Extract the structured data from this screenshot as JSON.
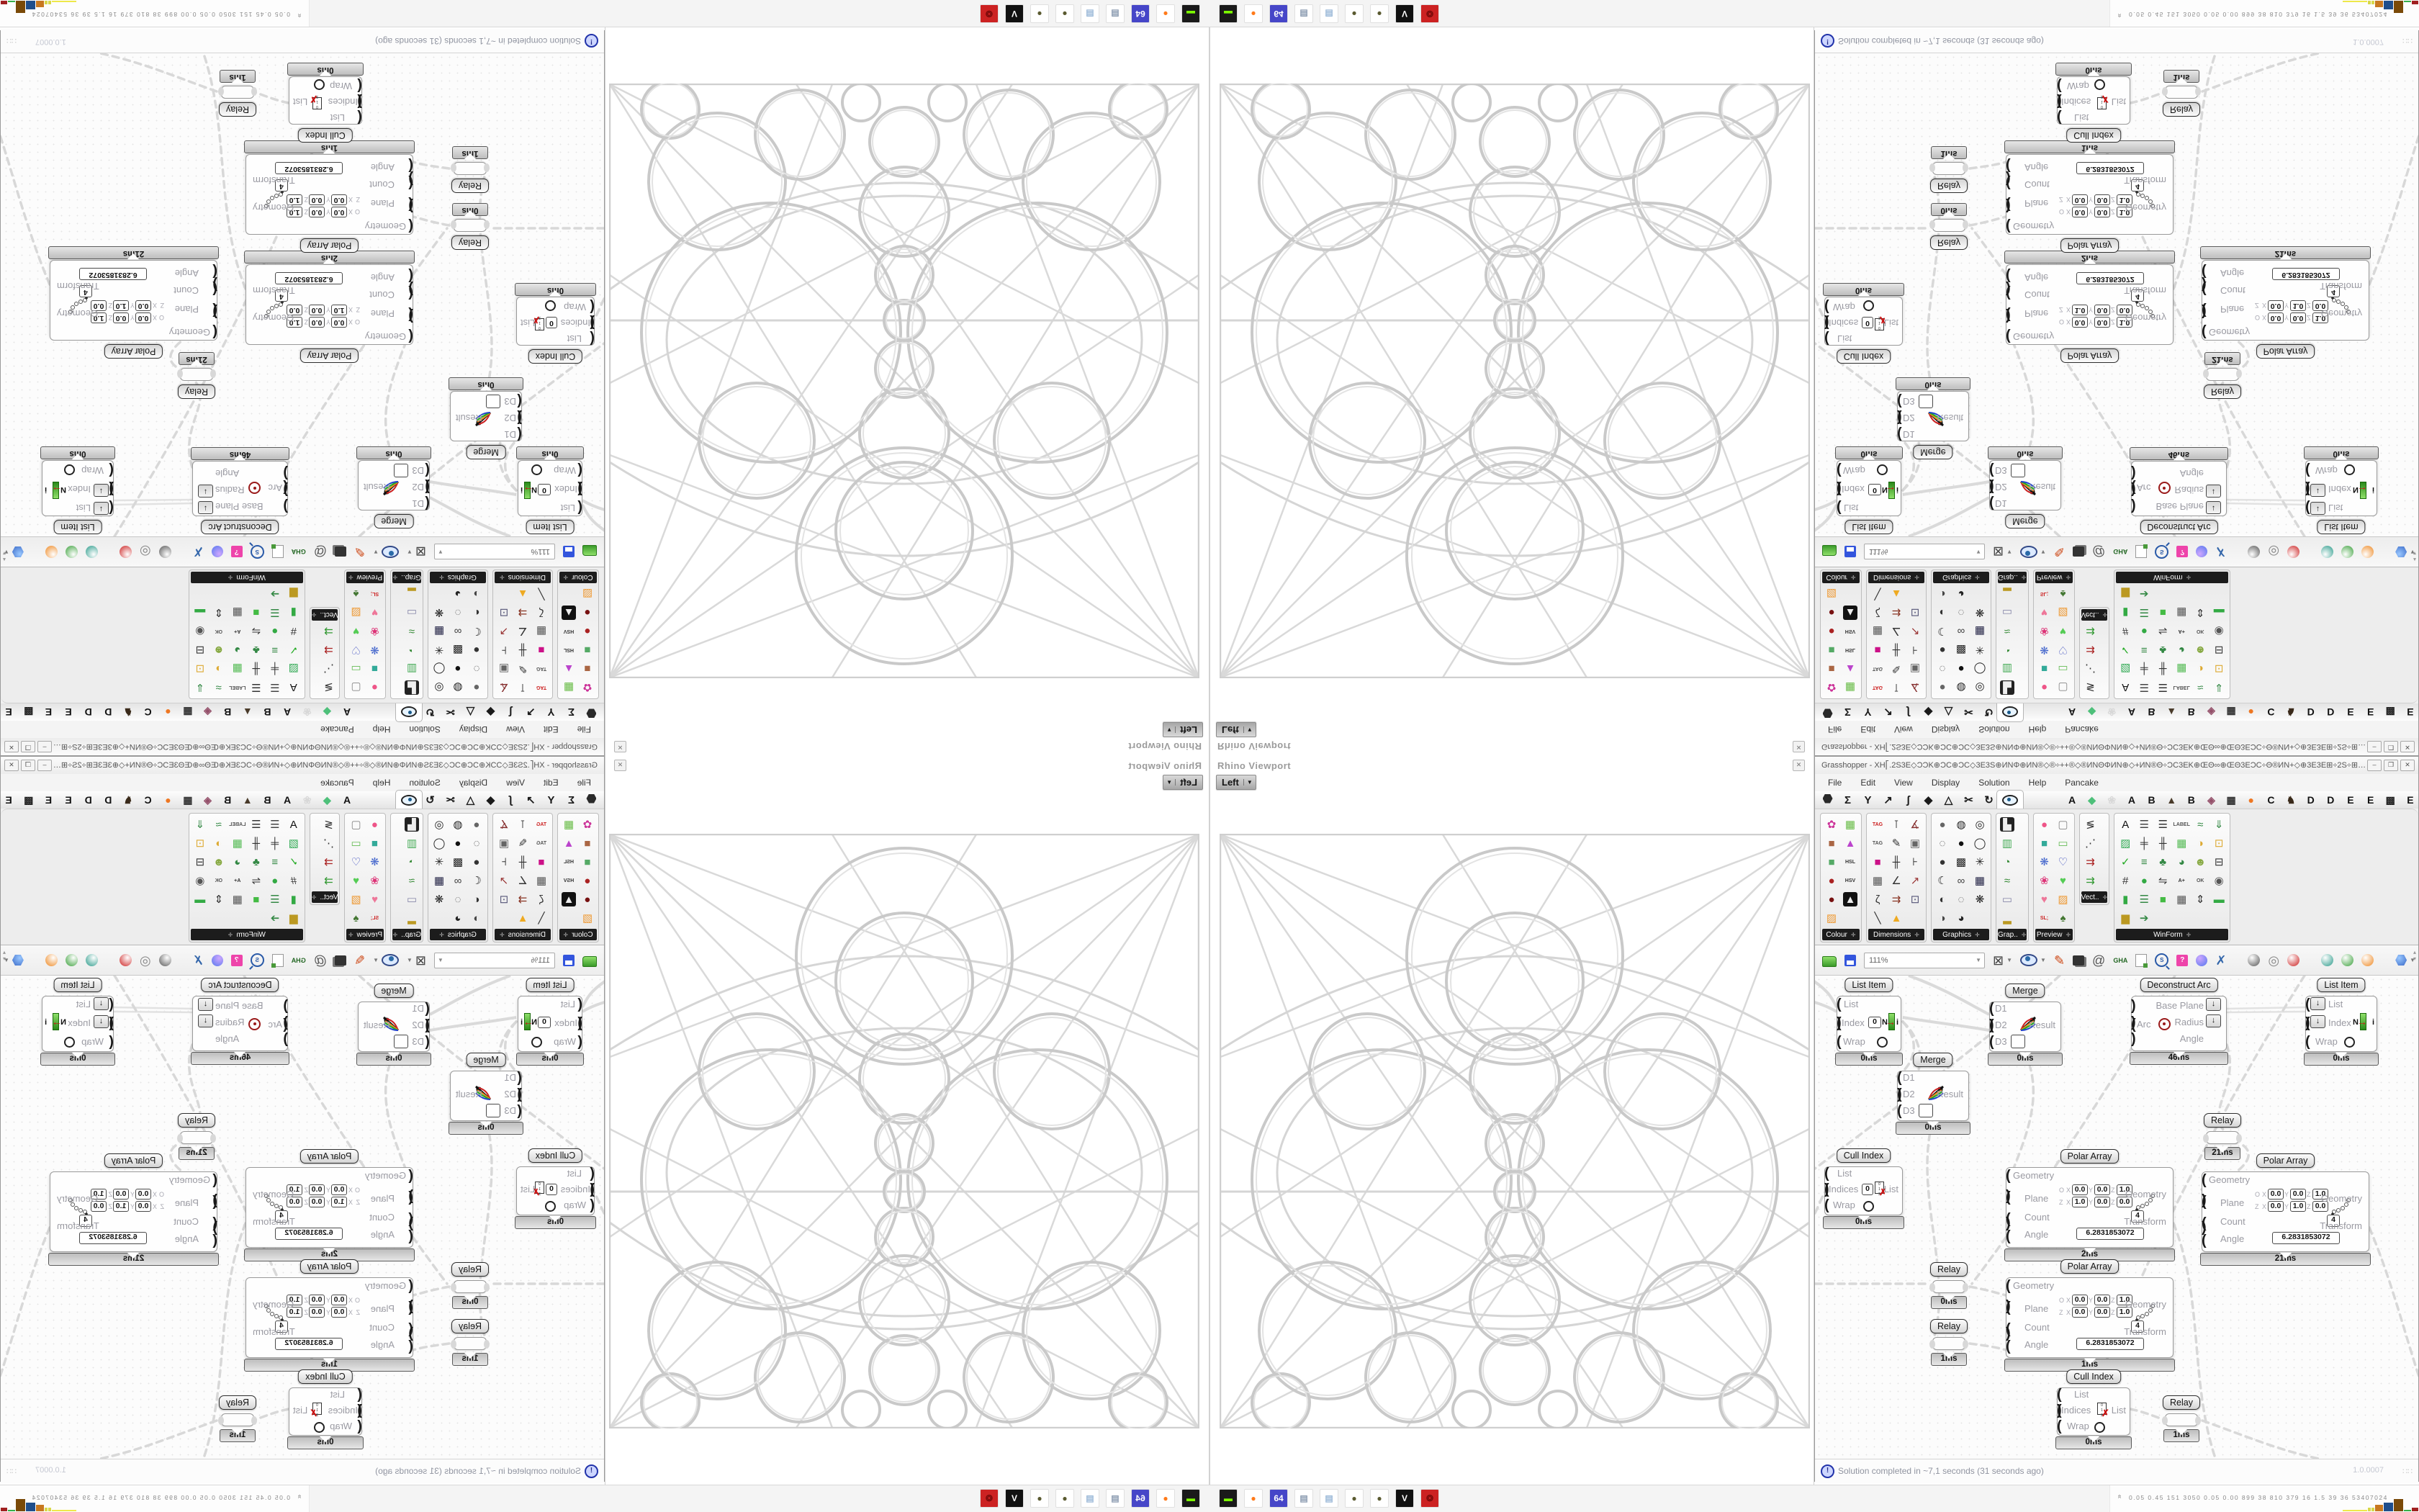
{
  "viewport": {
    "title": "Rhino Viewport",
    "view": "Left",
    "dropdown_arrow": "▼",
    "close": "✕"
  },
  "window": {
    "title": "Grasshopper - XH⎡.2S3E◇ƆƆK⊕ƆC⊕ƆC◇3E3S⊕ИΝΦ⊕ИΝ®◇®÷++®◇®ИΝΘΦИΝ⊕◇+ИΝ®Θ÷ƆC3EK⊕ŒΘ∞⊕ŒΘ3EƆC÷Θ®ИΝ+◇⊕3E3E⊞÷2S÷⊞3E3E⊕◇+ĸŒ3E⊞+÷ƆC...",
    "minimize": "–",
    "maximize": "❐",
    "close": "✕"
  },
  "menus": [
    "File",
    "Edit",
    "View",
    "Display",
    "Solution",
    "Help",
    "Pancake"
  ],
  "tabs": {
    "categories": [
      {
        "n": "tab-params",
        "t": "hex"
      },
      {
        "n": "tab-maths",
        "g": "Σ"
      },
      {
        "n": "tab-sets",
        "g": "Y"
      },
      {
        "n": "tab-vector",
        "g": "↗"
      },
      {
        "n": "tab-curve",
        "g": "ʃ"
      },
      {
        "n": "tab-surface",
        "g": "◆"
      },
      {
        "n": "tab-mesh",
        "g": "△"
      },
      {
        "n": "tab-intersect",
        "g": "✂"
      },
      {
        "n": "tab-transform",
        "g": "↻"
      },
      {
        "n": "tab-display",
        "t": "eye",
        "selected": true
      }
    ],
    "plugins": [
      [
        "tab-a",
        "A",
        "#111111"
      ],
      [
        "tab-gem",
        "◆",
        "#4ec07a"
      ],
      [
        "tab-blob",
        "❀",
        "#d8d8d8"
      ],
      [
        "tab-a2",
        "A",
        "#111111"
      ],
      [
        "tab-b",
        "B",
        "#111111"
      ],
      [
        "tab-mountain",
        "▲",
        "#4a3b2a"
      ],
      [
        "tab-b2",
        "B",
        "#111111"
      ],
      [
        "tab-shield",
        "◈",
        "#94506a"
      ],
      [
        "tab-waffle",
        "▦",
        "#333333"
      ],
      [
        "tab-orange",
        "●",
        "#ee7722"
      ],
      [
        "tab-c",
        "C",
        "#111111"
      ],
      [
        "tab-bird",
        "♞",
        "#3a2a1a"
      ],
      [
        "tab-d",
        "D",
        "#111111"
      ],
      [
        "tab-d2",
        "D",
        "#111111"
      ],
      [
        "tab-e",
        "E",
        "#111111"
      ],
      [
        "tab-e2",
        "E",
        "#111111"
      ],
      [
        "tab-dots",
        "▩",
        "#222222"
      ],
      [
        "tab-e3",
        "E",
        "#111111"
      ]
    ]
  },
  "panels": [
    {
      "name": "colour",
      "label": "Colour",
      "cols": 2,
      "icons": [
        [
          "colour-wheel",
          "✿",
          "#cc3399"
        ],
        [
          "gradient",
          "▦",
          "#66bb44"
        ],
        [
          "cube-red",
          "■",
          "#aa6644"
        ],
        [
          "triangle",
          "▲",
          "#bb44cc"
        ],
        [
          "cube-green",
          "■",
          "#55aa66"
        ],
        [
          "hsl",
          "HSL",
          "#333333"
        ],
        [
          "sphere-red",
          "●",
          "#aa2222"
        ],
        [
          "hsv",
          "HSV",
          "#333333"
        ],
        [
          "sphere-dark",
          "●",
          "#771111"
        ],
        [
          "prism",
          "▲",
          "#eeeeee",
          "#111111"
        ],
        [
          "gradient-2",
          "▨",
          "#ee9933"
        ]
      ]
    },
    {
      "name": "dimensions",
      "label": "Dimensions",
      "cols": 3,
      "icons": [
        [
          "tag-x",
          "TAG",
          "#cc2222"
        ],
        [
          "ruler",
          "⊺",
          "#333333"
        ],
        [
          "angle-arc",
          "∡",
          "#883333"
        ],
        [
          "tag-pen",
          "TAG",
          "#555555"
        ],
        [
          "pen",
          "✎",
          "#333333"
        ],
        [
          "box-dim",
          "▣",
          "#666666"
        ],
        [
          "rect-magenta",
          "■",
          "#cc1188"
        ],
        [
          "ticks",
          "╫",
          "#333333"
        ],
        [
          "linear-dim",
          "⊦",
          "#333333"
        ],
        [
          "hatch",
          "▦",
          "#555555"
        ],
        [
          "angle-dim",
          "∠",
          "#333333"
        ],
        [
          "arrow-dim",
          "↗",
          "#993333"
        ],
        [
          "poly-dim",
          "ζ",
          "#333333"
        ],
        [
          "marker",
          "⇉",
          "#883322"
        ],
        [
          "select-box",
          "⊡",
          "#555577"
        ],
        [
          "diag-line",
          "╲",
          "#333333"
        ],
        [
          "triangle-y",
          "▲",
          "#eeaa22"
        ]
      ]
    },
    {
      "name": "graphics",
      "label": "Graphics",
      "cols": 3,
      "icons": [
        [
          "circle-gray",
          "●",
          "#666666"
        ],
        [
          "t-circle",
          "◍",
          "#222222"
        ],
        [
          "target",
          "◎",
          "#222222"
        ],
        [
          "dashed-circle",
          "◌",
          "#444444"
        ],
        [
          "t-solid",
          "●",
          "#111111"
        ],
        [
          "o-frame",
          "◯",
          "#222222"
        ],
        [
          "dot-soft",
          "●",
          "#333333"
        ],
        [
          "b-grid",
          "▩",
          "#222222"
        ],
        [
          "wheel",
          "✳",
          "#222222"
        ],
        [
          "crescent",
          "☾",
          "#222222"
        ],
        [
          "link",
          "∞",
          "#444444"
        ],
        [
          "save-h",
          "▦",
          "#222244"
        ],
        [
          "sphere-g",
          "◐",
          "#333333"
        ],
        [
          "ellipse-dash",
          "◌",
          "#555555"
        ],
        [
          "save-snow",
          "❋",
          "#222222"
        ],
        [
          "sphere-g2",
          "◑",
          "#444444"
        ],
        [
          "pacman",
          "◕",
          "#222222"
        ]
      ]
    },
    {
      "name": "graph",
      "label": "Grap..",
      "cols": 1,
      "icons": [
        [
          "city-chart",
          "▙",
          "#eeeeee",
          "#222222"
        ],
        [
          "gradient-bar",
          "▥",
          "#44aa55"
        ],
        [
          "pie",
          "◔",
          "#338833"
        ],
        [
          "line-chart",
          "≈",
          "#338833"
        ],
        [
          "photo",
          "▭",
          "#8888aa"
        ],
        [
          "bar-chart",
          "▂",
          "#bb9922"
        ]
      ]
    },
    {
      "name": "preview",
      "label": "Preview",
      "cols": 2,
      "icons": [
        [
          "sphere-pink",
          "●",
          "#ee5588"
        ],
        [
          "camera",
          "▢",
          "#888888"
        ],
        [
          "box-teal",
          "■",
          "#33aa99"
        ],
        [
          "landscape",
          "▭",
          "#66bb55"
        ],
        [
          "balls-blue",
          "❋",
          "#4466cc"
        ],
        [
          "heart-mesh",
          "♡",
          "#3344bb"
        ],
        [
          "balls-pink",
          "❀",
          "#dd3377"
        ],
        [
          "heart-green",
          "♥",
          "#55cc55"
        ],
        [
          "hearts",
          "♥",
          "#ee7799"
        ],
        [
          "gradient-x",
          "▨",
          "#ee9933"
        ],
        [
          "sl-text",
          "SL;",
          "#cc2222"
        ],
        [
          "tree",
          "♠",
          "#447733"
        ]
      ]
    },
    {
      "name": "vector",
      "label": "Vect..",
      "cols": 1,
      "short": true,
      "icons": [
        [
          "sort",
          "≶",
          "#333333"
        ],
        [
          "path",
          "⋰",
          "#333333"
        ],
        [
          "arrows-red",
          "⇉",
          "#aa2222"
        ],
        [
          "arrows-green",
          "⇉",
          "#339933"
        ]
      ]
    },
    {
      "name": "winform",
      "label": "WinForm",
      "cols": 6,
      "icons": [
        [
          "text-a",
          "A",
          "#111111"
        ],
        [
          "tree-list",
          "☰",
          "#444444"
        ],
        [
          "lines",
          "☰",
          "#333333"
        ],
        [
          "label",
          "LABEL",
          "#555555"
        ],
        [
          "chart-w",
          "≈",
          "#338844"
        ],
        [
          "import",
          "⇓",
          "#338844"
        ],
        [
          "hatch-g",
          "▨",
          "#33aa55"
        ],
        [
          "slider-1",
          "╪",
          "#333333"
        ],
        [
          "slider-2",
          "╫",
          "#333333"
        ],
        [
          "grid-g",
          "▦",
          "#55bb55"
        ],
        [
          "toggle",
          "◑",
          "#ddaa33"
        ],
        [
          "crop",
          "⊡",
          "#ddaa33"
        ],
        [
          "check",
          "✓",
          "#22aa22"
        ],
        [
          "list-g",
          "≡",
          "#338844"
        ],
        [
          "trees",
          "♣",
          "#338844"
        ],
        [
          "pie-g",
          "◕",
          "#338844"
        ],
        [
          "person",
          "☻",
          "#88aa44"
        ],
        [
          "dropdown",
          "⊟",
          "#333333"
        ],
        [
          "counter",
          "#",
          "#333333"
        ],
        [
          "ball-g",
          "●",
          "#33aa44"
        ],
        [
          "compare",
          "⇋",
          "#333333"
        ],
        [
          "a-plus",
          "A+",
          "#333333"
        ],
        [
          "ok",
          "OK",
          "#555555"
        ],
        [
          "switch",
          "◉",
          "#555555"
        ],
        [
          "bar-g",
          "▮",
          "#33aa44"
        ],
        [
          "list-g2",
          "☰",
          "#338844"
        ],
        [
          "panel-g",
          "■",
          "#44bb44"
        ],
        [
          "calc",
          "▦",
          "#555555"
        ],
        [
          "scroll-v",
          "⇕",
          "#333333"
        ],
        [
          "progress",
          "▬",
          "#33aa44"
        ],
        [
          "bars",
          "▆",
          "#bb9922"
        ],
        [
          "step",
          "➔",
          "#338844"
        ]
      ]
    }
  ],
  "toolbar": {
    "zoom": "111%",
    "items": [
      {
        "n": "open-file-icon",
        "t": "folder"
      },
      {
        "n": "save-file-icon",
        "t": "floppy"
      },
      {
        "n": "zoom-combo",
        "t": "combo"
      },
      {
        "n": "zoom-extents-icon",
        "t": "g",
        "g": "⊠",
        "c": "#444444"
      },
      {
        "n": "zoom-dd",
        "t": "dd"
      },
      {
        "n": "preview-eye-icon",
        "t": "eye"
      },
      {
        "n": "eye-dd",
        "t": "dd"
      },
      {
        "n": "sketch-pen-icon",
        "t": "g",
        "g": "✎",
        "c": "#cc4411"
      },
      {
        "n": "views-icon",
        "t": "views"
      },
      {
        "n": "at-icon",
        "t": "g",
        "g": "@",
        "c": "#555555"
      },
      {
        "n": "gha-icon",
        "t": "gha",
        "g": "GHA"
      },
      {
        "n": "notepad-icon",
        "t": "note"
      },
      {
        "n": "finder-icon",
        "t": "mag",
        "g": "S"
      },
      {
        "n": "package-icon",
        "t": "gift",
        "g": "?"
      },
      {
        "n": "bulb-icon",
        "t": "bulb"
      },
      {
        "n": "ribbons-icon",
        "t": "g",
        "g": "✗",
        "c": "#3366aa"
      },
      {
        "n": "sp1",
        "t": "sep"
      },
      {
        "n": "sphere-dark-icon",
        "t": "ball",
        "c": "#555555"
      },
      {
        "n": "torus-icon",
        "t": "g",
        "g": "◎",
        "c": "#888888"
      },
      {
        "n": "gem-red-icon",
        "t": "ball",
        "c": "#cc2222"
      },
      {
        "n": "sp2",
        "t": "sep"
      },
      {
        "n": "sphere-teal-icon",
        "t": "ball",
        "c": "#2a9a8a"
      },
      {
        "n": "sphere-green-icon",
        "t": "ball",
        "c": "#3aa03a"
      },
      {
        "n": "sphere-orange-icon",
        "t": "ball",
        "c": "#ee8822"
      },
      {
        "n": "sp3",
        "t": "sep"
      },
      {
        "n": "hexagon-blue-icon",
        "t": "hex"
      },
      {
        "n": "hex-dd",
        "t": "dd"
      }
    ]
  },
  "canvas": {
    "plane_labels": {
      "o": "O",
      "z": "Z",
      "x": "X",
      "y": "Y"
    },
    "nodes": {
      "list_item_1": {
        "title": "List Item",
        "in_list": "List",
        "in_index": "Index",
        "in_wrap": "Wrap",
        "index_value": "0",
        "n_label": "N",
        "out_label": "i",
        "time": "0ms"
      },
      "merge_1": {
        "title": "Merge",
        "d1": "D1",
        "d2": "D2",
        "d3": "D3",
        "result": "Result",
        "time": "0ms"
      },
      "deconstruct_arc": {
        "title": "Deconstruct Arc",
        "in_arc": "Arc",
        "out_base": "Base Plane",
        "out_radius": "Radius",
        "out_angle": "Angle",
        "arrow": "↓",
        "time": "46ms"
      },
      "list_item_2": {
        "title": "List Item",
        "in_list": "List",
        "in_index": "Index",
        "in_wrap": "Wrap",
        "n_label": "N",
        "out_label": "i",
        "arrow": "↓",
        "time": "0ms"
      },
      "merge_2": {
        "title": "Merge",
        "d1": "D1",
        "d2": "D2",
        "d3": "D3",
        "result": "Result",
        "time": "0ms"
      },
      "relay_1": {
        "title": "Relay",
        "time": "21ms"
      },
      "cull_index_1": {
        "title": "Cull Index",
        "in_list": "List",
        "in_indices": "Indices",
        "in_wrap": "Wrap",
        "indices_value": "0",
        "out_list": "List",
        "time": "0ms"
      },
      "polar_array_1": {
        "title": "Polar Array",
        "in_geometry": "Geometry",
        "in_plane": "Plane",
        "in_count": "Count",
        "in_angle": "Angle",
        "out_geometry": "Geometry",
        "out_transform": "Transform",
        "count_value": "4",
        "angle_value": "6.2831853072",
        "plane_o": [
          "0.0",
          "0.0",
          "1.0"
        ],
        "plane_z": [
          "1.0",
          "0.0",
          "0.0"
        ],
        "time": "2ms"
      },
      "polar_array_2": {
        "title": "Polar Array",
        "in_geometry": "Geometry",
        "in_plane": "Plane",
        "in_count": "Count",
        "in_angle": "Angle",
        "out_geometry": "Geometry",
        "out_transform": "Transform",
        "count_value": "4",
        "angle_value": "6.2831853072",
        "plane_o": [
          "0.0",
          "0.0",
          "1.0"
        ],
        "plane_z": [
          "0.0",
          "1.0",
          "0.0"
        ],
        "time": "21ms"
      },
      "polar_array_3": {
        "title": "Polar Array",
        "in_geometry": "Geometry",
        "in_plane": "Plane",
        "in_count": "Count",
        "in_angle": "Angle",
        "out_geometry": "Geometry",
        "out_transform": "Transform",
        "count_value": "4",
        "angle_value": "6.2831853072",
        "plane_o": [
          "0.0",
          "0.0",
          "1.0"
        ],
        "plane_z": [
          "0.0",
          "0.0",
          "1.0"
        ],
        "time": "1ms"
      },
      "relay_2": {
        "title": "Relay",
        "time": "0ms"
      },
      "relay_3": {
        "title": "Relay",
        "time": "1ms"
      },
      "cull_index_2": {
        "title": "Cull Index",
        "in_list": "List",
        "in_indices": "Indices",
        "in_wrap": "Wrap",
        "out_list": "List",
        "time": "0ms"
      },
      "relay_4": {
        "title": "Relay",
        "time": "1ms"
      }
    }
  },
  "statusbar": {
    "icon": "!",
    "text": "Solution completed in ~7,1 seconds (31 seconds ago)",
    "version": "1.0.0007",
    "grip": "∷∷"
  },
  "taskbar": {
    "icons": [
      {
        "n": "recorder-icon",
        "g": "▬",
        "c": "#7cfc00",
        "bg": "#1a1a1a"
      },
      {
        "n": "firefox-icon",
        "g": "●",
        "c": "#ff7a1a",
        "bg": "#ffffff"
      },
      {
        "n": "floppy-64-icon",
        "g": "64",
        "c": "#ffffff",
        "bg": "#4646c8"
      },
      {
        "n": "scroll-icon",
        "g": "▤",
        "c": "#8a9ab0",
        "bg": "#ffffff"
      },
      {
        "n": "notepad-icon",
        "g": "▤",
        "c": "#9ab8d8",
        "bg": "#ffffff"
      },
      {
        "n": "moss-ball-icon",
        "g": "●",
        "c": "#5a5a30",
        "bg": "#ffffff"
      },
      {
        "n": "moss-ball-2-icon",
        "g": "●",
        "c": "#5a5a30",
        "bg": "#ffffff"
      },
      {
        "n": "vivaldi-icon",
        "g": "V",
        "c": "#ffffff",
        "bg": "#111111"
      },
      {
        "n": "badge-icon",
        "g": "❂",
        "c": "#7a0a0a",
        "bg": "#cc2222"
      }
    ]
  },
  "stats": {
    "chevron": "«",
    "text": "0.05 0.45  151  3050 0.05 0.00  899    38    810   379    16    1.5    39    36  53407024",
    "chart": [
      [
        "#eee84a",
        34,
        2
      ],
      [
        "#d8d84a",
        4,
        5
      ],
      [
        "#d8d84a",
        4,
        5
      ],
      [
        "#c87820",
        11,
        9
      ],
      [
        "#1f4e8c",
        13,
        12
      ],
      [
        "#7a4a08",
        13,
        17
      ],
      [
        "#35b04a",
        10,
        2
      ],
      [
        "#a02020",
        9,
        5
      ]
    ]
  }
}
